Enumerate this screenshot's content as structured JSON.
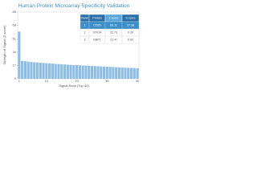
{
  "chart_data": {
    "type": "bar",
    "title": "Human Protein Microarray Specificity Validation",
    "x_label": "Signal Rank (Top 40)",
    "y_label": "Strength of Signal (Z score)",
    "categories": [
      1,
      null,
      null,
      null,
      null,
      null,
      null,
      null,
      null,
      10,
      null,
      null,
      null,
      null,
      null,
      null,
      null,
      null,
      null,
      20,
      null,
      null,
      null,
      null,
      null,
      null,
      null,
      null,
      null,
      30,
      null,
      null,
      null,
      null,
      null,
      null,
      null,
      null,
      null,
      40
    ],
    "values": [
      60.11,
      22.73,
      22.47,
      21.9,
      21.5,
      21.1,
      20.8,
      20.5,
      20.2,
      19.9,
      19.6,
      19.3,
      19.0,
      18.8,
      18.5,
      18.3,
      18.0,
      17.8,
      17.6,
      17.4,
      17.2,
      17.0,
      16.8,
      16.6,
      16.4,
      16.2,
      16.0,
      15.8,
      15.6,
      15.4,
      15.2,
      15.0,
      14.8,
      14.6,
      14.4,
      14.2,
      14.0,
      13.8,
      13.6,
      13.4
    ],
    "color": "#8dbde3",
    "ylim": [
      0,
      85
    ],
    "yticks": [
      0,
      17,
      34,
      51,
      68,
      85
    ],
    "table": {
      "columns": [
        "Rank",
        "Protein",
        "Z score",
        "S score"
      ],
      "rows": [
        [
          "1",
          "CD20",
          "60.11",
          "37.38"
        ],
        [
          "2",
          "STK34",
          "22.73",
          "0.26"
        ],
        [
          "3",
          "RBP1",
          "22.47",
          "0.93"
        ]
      ]
    }
  }
}
